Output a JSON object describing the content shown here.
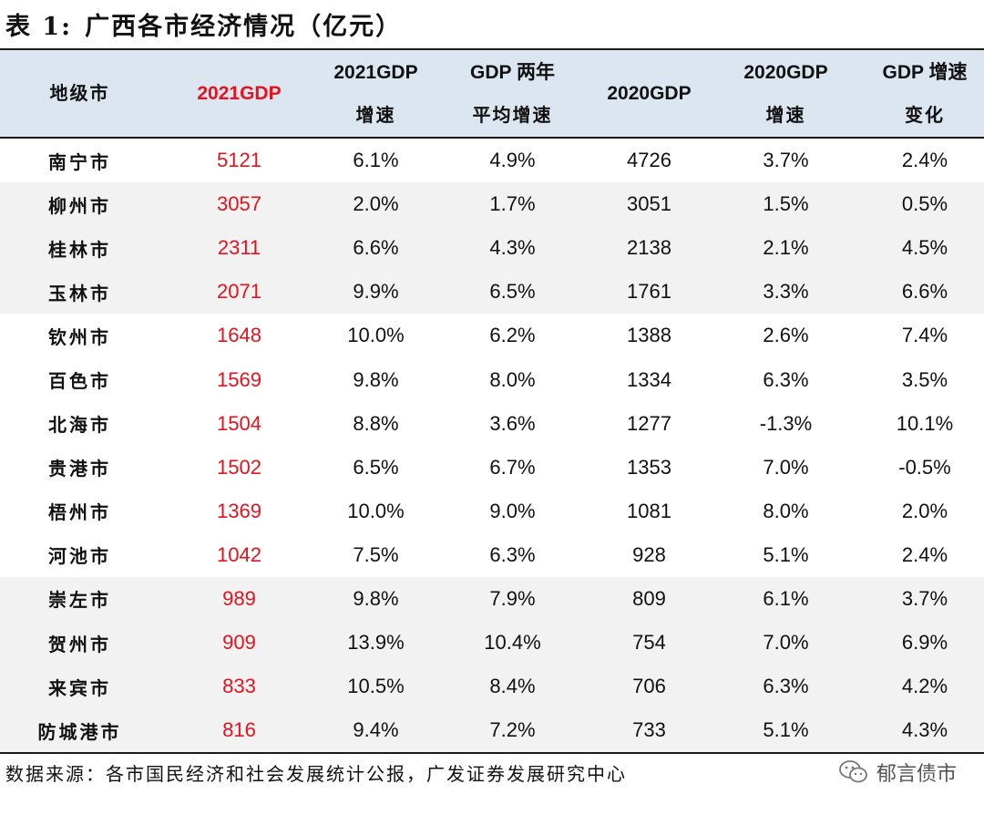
{
  "title": {
    "label": "表 1:",
    "text": "广西各市经济情况（亿元）"
  },
  "header": {
    "city": "地级市",
    "gdp2021": "2021GDP",
    "growth2021": [
      "2021GDP",
      "增速"
    ],
    "avg2y": [
      "GDP 两年",
      "平均增速"
    ],
    "gdp2020": "2020GDP",
    "growth2020": [
      "2020GDP",
      "增速"
    ],
    "change": [
      "GDP 增速",
      "变化"
    ]
  },
  "rows": [
    [
      "南宁市",
      "5121",
      "6.1%",
      "4.9%",
      "4726",
      "3.7%",
      "2.4%"
    ],
    [
      "柳州市",
      "3057",
      "2.0%",
      "1.7%",
      "3051",
      "1.5%",
      "0.5%"
    ],
    [
      "桂林市",
      "2311",
      "6.6%",
      "4.3%",
      "2138",
      "2.1%",
      "4.5%"
    ],
    [
      "玉林市",
      "2071",
      "9.9%",
      "6.5%",
      "1761",
      "3.3%",
      "6.6%"
    ],
    [
      "钦州市",
      "1648",
      "10.0%",
      "6.2%",
      "1388",
      "2.6%",
      "7.4%"
    ],
    [
      "百色市",
      "1569",
      "9.8%",
      "8.0%",
      "1334",
      "6.3%",
      "3.5%"
    ],
    [
      "北海市",
      "1504",
      "8.8%",
      "3.6%",
      "1277",
      "-1.3%",
      "10.1%"
    ],
    [
      "贵港市",
      "1502",
      "6.5%",
      "6.7%",
      "1353",
      "7.0%",
      "-0.5%"
    ],
    [
      "梧州市",
      "1369",
      "10.0%",
      "9.0%",
      "1081",
      "8.0%",
      "2.0%"
    ],
    [
      "河池市",
      "1042",
      "7.5%",
      "6.3%",
      "928",
      "5.1%",
      "2.4%"
    ],
    [
      "崇左市",
      "989",
      "9.8%",
      "7.9%",
      "809",
      "6.1%",
      "3.7%"
    ],
    [
      "贺州市",
      "909",
      "13.9%",
      "10.4%",
      "754",
      "7.0%",
      "6.9%"
    ],
    [
      "来宾市",
      "833",
      "10.5%",
      "8.4%",
      "706",
      "6.3%",
      "4.2%"
    ],
    [
      "防城港市",
      "816",
      "9.4%",
      "7.2%",
      "733",
      "5.1%",
      "4.3%"
    ]
  ],
  "shaded_rows": [
    1,
    2,
    3,
    10,
    11,
    12,
    13
  ],
  "colors": {
    "header_bg": "#dce6f0",
    "accent_red": "#e8121d",
    "shade": "#f2f2f2"
  },
  "footer": {
    "source": "数据来源：各市国民经济和社会发展统计公报，广发证券发展研究中心"
  },
  "watermark": {
    "icon": "wechat-icon",
    "text": "郁言债市"
  }
}
